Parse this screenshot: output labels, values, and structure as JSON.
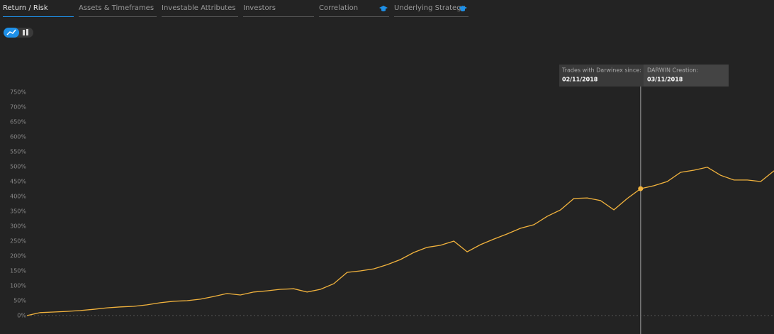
{
  "tabs": [
    "Return / Risk",
    "Assets & Timeframes",
    "Investable Attributes",
    "Investors",
    "Correlation",
    "Underlying Strategy"
  ],
  "chart_data": {
    "type": "line",
    "annotations": [
      {
        "label": "Trades with Darwinex since:",
        "date": "02/11/2018"
      },
      {
        "label": "DARWIN Creation:",
        "date": "03/11/2018"
      }
    ],
    "series": [
      {
        "color": "#f2b33d",
        "values": [
          0,
          10,
          12,
          14,
          17,
          21,
          26,
          29,
          31,
          36,
          43,
          48,
          50,
          55,
          64,
          74,
          69,
          79,
          83,
          88,
          90,
          79,
          88,
          107,
          145,
          150,
          157,
          171,
          188,
          212,
          229,
          236,
          250,
          214,
          238,
          257,
          274,
          293,
          305,
          333,
          355,
          393,
          395,
          386,
          355,
          393,
          426,
          436,
          450,
          481,
          488,
          498,
          471,
          455,
          455,
          450,
          486
        ]
      }
    ],
    "ylim": [
      0,
      750
    ],
    "yticks": [
      {
        "value": 0,
        "label": "0%"
      },
      {
        "value": 50,
        "label": "50%"
      },
      {
        "value": 100,
        "label": "100%"
      },
      {
        "value": 150,
        "label": "150%"
      },
      {
        "value": 200,
        "label": "200%"
      },
      {
        "value": 250,
        "label": "250%"
      },
      {
        "value": 300,
        "label": "300%"
      },
      {
        "value": 350,
        "label": "350%"
      },
      {
        "value": 400,
        "label": "400%"
      },
      {
        "value": 450,
        "label": "450%"
      },
      {
        "value": 500,
        "label": "500%"
      },
      {
        "value": 550,
        "label": "550%"
      },
      {
        "value": 600,
        "label": "600%"
      },
      {
        "value": 650,
        "label": "650%"
      },
      {
        "value": 700,
        "label": "700%"
      },
      {
        "value": 750,
        "label": "750%"
      }
    ]
  }
}
